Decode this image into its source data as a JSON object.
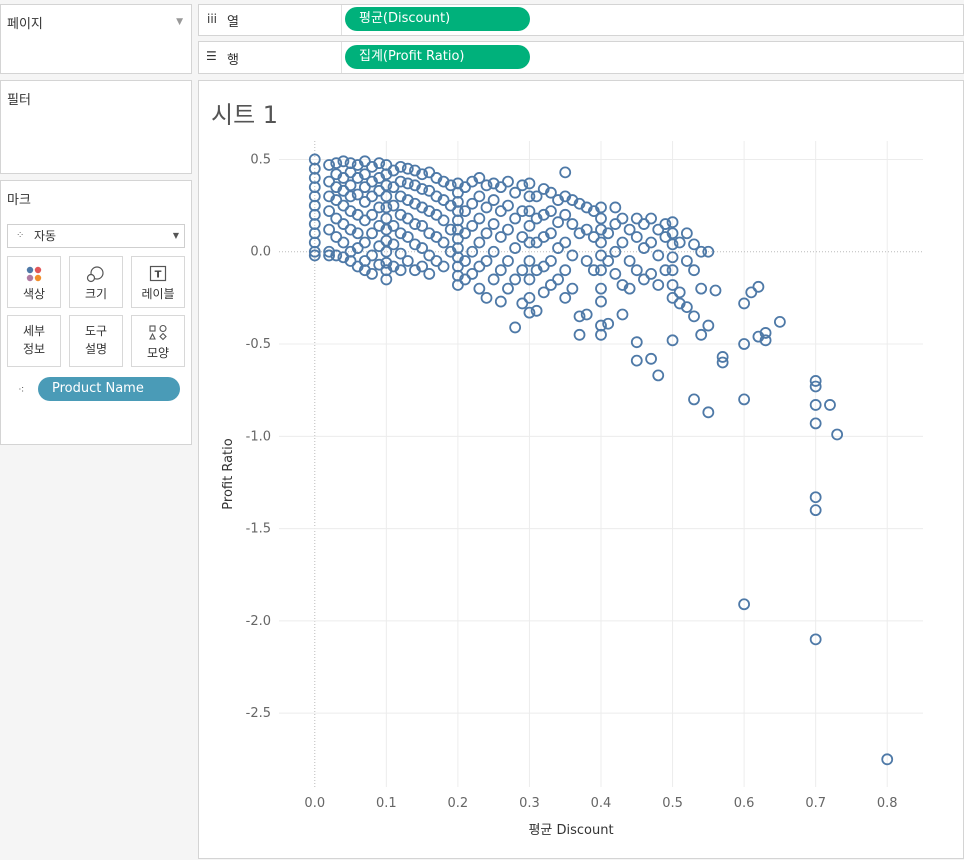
{
  "pages_panel": {
    "title": "페이지"
  },
  "filters_panel": {
    "title": "필터"
  },
  "marks_panel": {
    "title": "마크",
    "mark_type": "자동",
    "buttons": [
      {
        "label": "색상",
        "icon": "color-dots-icon"
      },
      {
        "label": "크기",
        "icon": "size-circles-icon"
      },
      {
        "label": "레이블",
        "icon": "label-t-icon"
      },
      {
        "label_line1": "세부",
        "label_line2": "정보",
        "icon": "none"
      },
      {
        "label_line1": "도구",
        "label_line2": "설명",
        "icon": "none"
      },
      {
        "label": "모양",
        "icon": "shape-icon"
      }
    ],
    "detail_pill": "Product Name"
  },
  "columns_shelf": {
    "label": "열",
    "icon": "columns-icon",
    "pill": "평균(Discount)"
  },
  "rows_shelf": {
    "label": "행",
    "icon": "rows-icon",
    "pill": "집계(Profit Ratio)"
  },
  "sheet": {
    "title": "시트 1"
  },
  "colors": {
    "pill_green": "#00b17b",
    "pill_blue": "#4a9bb7",
    "mark": "#4e79a7"
  },
  "chart_data": {
    "type": "scatter",
    "xlabel": "평균 Discount",
    "ylabel": "Profit Ratio",
    "xlim": [
      -0.05,
      0.85
    ],
    "ylim": [
      -2.9,
      0.6
    ],
    "x_ticks": [
      "0.0",
      "0.1",
      "0.2",
      "0.3",
      "0.4",
      "0.5",
      "0.6",
      "0.7",
      "0.8"
    ],
    "y_ticks": [
      "0.5",
      "0.0",
      "-0.5",
      "-1.0",
      "-1.5",
      "-2.0",
      "-2.5"
    ],
    "grid": true,
    "marker": "hollow-circle",
    "points": [
      [
        0.0,
        0.5
      ],
      [
        0.0,
        0.45
      ],
      [
        0.0,
        0.4
      ],
      [
        0.0,
        0.35
      ],
      [
        0.0,
        0.3
      ],
      [
        0.0,
        0.25
      ],
      [
        0.0,
        0.2
      ],
      [
        0.0,
        0.15
      ],
      [
        0.0,
        0.1
      ],
      [
        0.0,
        0.05
      ],
      [
        0.0,
        0.0
      ],
      [
        0.0,
        -0.02
      ],
      [
        0.02,
        0.47
      ],
      [
        0.02,
        0.38
      ],
      [
        0.02,
        0.3
      ],
      [
        0.02,
        0.22
      ],
      [
        0.02,
        0.12
      ],
      [
        0.02,
        0.0
      ],
      [
        0.02,
        -0.02
      ],
      [
        0.03,
        0.48
      ],
      [
        0.03,
        0.42
      ],
      [
        0.03,
        0.35
      ],
      [
        0.03,
        0.28
      ],
      [
        0.03,
        0.18
      ],
      [
        0.03,
        0.08
      ],
      [
        0.03,
        -0.02
      ],
      [
        0.04,
        0.49
      ],
      [
        0.04,
        0.4
      ],
      [
        0.04,
        0.33
      ],
      [
        0.04,
        0.25
      ],
      [
        0.04,
        0.15
      ],
      [
        0.04,
        0.05
      ],
      [
        0.04,
        -0.03
      ],
      [
        0.05,
        0.48
      ],
      [
        0.05,
        0.43
      ],
      [
        0.05,
        0.36
      ],
      [
        0.05,
        0.3
      ],
      [
        0.05,
        0.22
      ],
      [
        0.05,
        0.12
      ],
      [
        0.05,
        0.0
      ],
      [
        0.05,
        -0.05
      ],
      [
        0.06,
        0.47
      ],
      [
        0.06,
        0.4
      ],
      [
        0.06,
        0.31
      ],
      [
        0.06,
        0.2
      ],
      [
        0.06,
        0.1
      ],
      [
        0.06,
        0.02
      ],
      [
        0.06,
        -0.08
      ],
      [
        0.07,
        0.49
      ],
      [
        0.07,
        0.42
      ],
      [
        0.07,
        0.35
      ],
      [
        0.07,
        0.27
      ],
      [
        0.07,
        0.17
      ],
      [
        0.07,
        0.05
      ],
      [
        0.07,
        -0.05
      ],
      [
        0.07,
        -0.1
      ],
      [
        0.08,
        0.46
      ],
      [
        0.08,
        0.38
      ],
      [
        0.08,
        0.3
      ],
      [
        0.08,
        0.2
      ],
      [
        0.08,
        0.1
      ],
      [
        0.08,
        -0.02
      ],
      [
        0.08,
        -0.12
      ],
      [
        0.09,
        0.48
      ],
      [
        0.09,
        0.4
      ],
      [
        0.09,
        0.33
      ],
      [
        0.09,
        0.24
      ],
      [
        0.09,
        0.14
      ],
      [
        0.09,
        0.03
      ],
      [
        0.09,
        -0.07
      ],
      [
        0.1,
        0.47
      ],
      [
        0.1,
        0.42
      ],
      [
        0.1,
        0.36
      ],
      [
        0.1,
        0.3
      ],
      [
        0.1,
        0.24
      ],
      [
        0.1,
        0.18
      ],
      [
        0.1,
        0.12
      ],
      [
        0.1,
        0.06
      ],
      [
        0.1,
        0.0
      ],
      [
        0.1,
        -0.06
      ],
      [
        0.1,
        -0.1
      ],
      [
        0.1,
        -0.15
      ],
      [
        0.11,
        0.44
      ],
      [
        0.11,
        0.35
      ],
      [
        0.11,
        0.25
      ],
      [
        0.11,
        0.14
      ],
      [
        0.11,
        0.04
      ],
      [
        0.11,
        -0.08
      ],
      [
        0.12,
        0.46
      ],
      [
        0.12,
        0.38
      ],
      [
        0.12,
        0.3
      ],
      [
        0.12,
        0.2
      ],
      [
        0.12,
        0.1
      ],
      [
        0.12,
        -0.01
      ],
      [
        0.12,
        -0.1
      ],
      [
        0.13,
        0.45
      ],
      [
        0.13,
        0.37
      ],
      [
        0.13,
        0.28
      ],
      [
        0.13,
        0.18
      ],
      [
        0.13,
        0.08
      ],
      [
        0.13,
        -0.05
      ],
      [
        0.14,
        0.44
      ],
      [
        0.14,
        0.36
      ],
      [
        0.14,
        0.26
      ],
      [
        0.14,
        0.15
      ],
      [
        0.14,
        0.04
      ],
      [
        0.14,
        -0.1
      ],
      [
        0.15,
        0.42
      ],
      [
        0.15,
        0.34
      ],
      [
        0.15,
        0.24
      ],
      [
        0.15,
        0.14
      ],
      [
        0.15,
        0.02
      ],
      [
        0.15,
        -0.08
      ],
      [
        0.16,
        0.43
      ],
      [
        0.16,
        0.33
      ],
      [
        0.16,
        0.22
      ],
      [
        0.16,
        0.1
      ],
      [
        0.16,
        -0.02
      ],
      [
        0.16,
        -0.12
      ],
      [
        0.17,
        0.4
      ],
      [
        0.17,
        0.3
      ],
      [
        0.17,
        0.2
      ],
      [
        0.17,
        0.08
      ],
      [
        0.17,
        -0.05
      ],
      [
        0.18,
        0.38
      ],
      [
        0.18,
        0.28
      ],
      [
        0.18,
        0.17
      ],
      [
        0.18,
        0.05
      ],
      [
        0.18,
        -0.08
      ],
      [
        0.19,
        0.36
      ],
      [
        0.19,
        0.25
      ],
      [
        0.19,
        0.12
      ],
      [
        0.19,
        0.0
      ],
      [
        0.2,
        0.37
      ],
      [
        0.2,
        0.32
      ],
      [
        0.2,
        0.27
      ],
      [
        0.2,
        0.22
      ],
      [
        0.2,
        0.17
      ],
      [
        0.2,
        0.12
      ],
      [
        0.2,
        0.07
      ],
      [
        0.2,
        0.02
      ],
      [
        0.2,
        -0.03
      ],
      [
        0.2,
        -0.08
      ],
      [
        0.2,
        -0.13
      ],
      [
        0.2,
        -0.18
      ],
      [
        0.21,
        0.35
      ],
      [
        0.21,
        0.22
      ],
      [
        0.21,
        0.1
      ],
      [
        0.21,
        -0.05
      ],
      [
        0.21,
        -0.15
      ],
      [
        0.22,
        0.38
      ],
      [
        0.22,
        0.26
      ],
      [
        0.22,
        0.14
      ],
      [
        0.22,
        0.0
      ],
      [
        0.22,
        -0.12
      ],
      [
        0.23,
        0.4
      ],
      [
        0.23,
        0.3
      ],
      [
        0.23,
        0.18
      ],
      [
        0.23,
        0.05
      ],
      [
        0.23,
        -0.08
      ],
      [
        0.23,
        -0.2
      ],
      [
        0.24,
        0.36
      ],
      [
        0.24,
        0.24
      ],
      [
        0.24,
        0.1
      ],
      [
        0.24,
        -0.05
      ],
      [
        0.24,
        -0.25
      ],
      [
        0.25,
        0.37
      ],
      [
        0.25,
        0.28
      ],
      [
        0.25,
        0.15
      ],
      [
        0.25,
        0.0
      ],
      [
        0.25,
        -0.15
      ],
      [
        0.26,
        0.35
      ],
      [
        0.26,
        0.22
      ],
      [
        0.26,
        0.08
      ],
      [
        0.26,
        -0.1
      ],
      [
        0.26,
        -0.27
      ],
      [
        0.27,
        0.38
      ],
      [
        0.27,
        0.25
      ],
      [
        0.27,
        0.12
      ],
      [
        0.27,
        -0.05
      ],
      [
        0.27,
        -0.2
      ],
      [
        0.28,
        0.32
      ],
      [
        0.28,
        0.18
      ],
      [
        0.28,
        0.02
      ],
      [
        0.28,
        -0.15
      ],
      [
        0.28,
        -0.41
      ],
      [
        0.29,
        0.36
      ],
      [
        0.29,
        0.22
      ],
      [
        0.29,
        0.08
      ],
      [
        0.29,
        -0.1
      ],
      [
        0.29,
        -0.28
      ],
      [
        0.3,
        0.37
      ],
      [
        0.3,
        0.3
      ],
      [
        0.3,
        0.22
      ],
      [
        0.3,
        0.14
      ],
      [
        0.3,
        0.05
      ],
      [
        0.3,
        -0.05
      ],
      [
        0.3,
        -0.15
      ],
      [
        0.3,
        -0.25
      ],
      [
        0.3,
        -0.33
      ],
      [
        0.31,
        0.3
      ],
      [
        0.31,
        0.18
      ],
      [
        0.31,
        0.05
      ],
      [
        0.31,
        -0.1
      ],
      [
        0.31,
        -0.32
      ],
      [
        0.32,
        0.34
      ],
      [
        0.32,
        0.2
      ],
      [
        0.32,
        0.08
      ],
      [
        0.32,
        -0.08
      ],
      [
        0.32,
        -0.22
      ],
      [
        0.33,
        0.32
      ],
      [
        0.33,
        0.22
      ],
      [
        0.33,
        0.1
      ],
      [
        0.33,
        -0.05
      ],
      [
        0.33,
        -0.18
      ],
      [
        0.34,
        0.28
      ],
      [
        0.34,
        0.16
      ],
      [
        0.34,
        0.02
      ],
      [
        0.34,
        -0.15
      ],
      [
        0.35,
        0.43
      ],
      [
        0.35,
        0.3
      ],
      [
        0.35,
        0.2
      ],
      [
        0.35,
        0.05
      ],
      [
        0.35,
        -0.1
      ],
      [
        0.35,
        -0.25
      ],
      [
        0.36,
        0.28
      ],
      [
        0.36,
        0.15
      ],
      [
        0.36,
        -0.02
      ],
      [
        0.36,
        -0.2
      ],
      [
        0.37,
        0.26
      ],
      [
        0.37,
        0.1
      ],
      [
        0.37,
        -0.35
      ],
      [
        0.37,
        -0.45
      ],
      [
        0.38,
        0.24
      ],
      [
        0.38,
        0.12
      ],
      [
        0.38,
        -0.05
      ],
      [
        0.38,
        -0.34
      ],
      [
        0.39,
        0.22
      ],
      [
        0.39,
        0.08
      ],
      [
        0.39,
        -0.1
      ],
      [
        0.4,
        0.24
      ],
      [
        0.4,
        0.18
      ],
      [
        0.4,
        0.12
      ],
      [
        0.4,
        0.05
      ],
      [
        0.4,
        -0.02
      ],
      [
        0.4,
        -0.1
      ],
      [
        0.4,
        -0.2
      ],
      [
        0.4,
        -0.27
      ],
      [
        0.4,
        -0.4
      ],
      [
        0.4,
        -0.45
      ],
      [
        0.41,
        0.1
      ],
      [
        0.41,
        -0.05
      ],
      [
        0.41,
        -0.39
      ],
      [
        0.42,
        0.24
      ],
      [
        0.42,
        0.15
      ],
      [
        0.42,
        0.0
      ],
      [
        0.42,
        -0.12
      ],
      [
        0.43,
        0.18
      ],
      [
        0.43,
        0.05
      ],
      [
        0.43,
        -0.18
      ],
      [
        0.43,
        -0.34
      ],
      [
        0.44,
        0.12
      ],
      [
        0.44,
        -0.05
      ],
      [
        0.44,
        -0.2
      ],
      [
        0.45,
        0.18
      ],
      [
        0.45,
        0.08
      ],
      [
        0.45,
        -0.1
      ],
      [
        0.45,
        -0.49
      ],
      [
        0.45,
        -0.59
      ],
      [
        0.46,
        0.15
      ],
      [
        0.46,
        0.02
      ],
      [
        0.46,
        -0.15
      ],
      [
        0.47,
        0.18
      ],
      [
        0.47,
        0.05
      ],
      [
        0.47,
        -0.12
      ],
      [
        0.47,
        -0.58
      ],
      [
        0.48,
        0.12
      ],
      [
        0.48,
        -0.02
      ],
      [
        0.48,
        -0.18
      ],
      [
        0.48,
        -0.67
      ],
      [
        0.49,
        0.15
      ],
      [
        0.49,
        0.08
      ],
      [
        0.49,
        -0.1
      ],
      [
        0.5,
        0.16
      ],
      [
        0.5,
        0.1
      ],
      [
        0.5,
        0.04
      ],
      [
        0.5,
        -0.03
      ],
      [
        0.5,
        -0.1
      ],
      [
        0.5,
        -0.18
      ],
      [
        0.5,
        -0.25
      ],
      [
        0.5,
        -0.48
      ],
      [
        0.51,
        0.05
      ],
      [
        0.51,
        -0.22
      ],
      [
        0.51,
        -0.28
      ],
      [
        0.52,
        0.1
      ],
      [
        0.52,
        -0.05
      ],
      [
        0.52,
        -0.3
      ],
      [
        0.53,
        0.04
      ],
      [
        0.53,
        -0.1
      ],
      [
        0.53,
        -0.35
      ],
      [
        0.53,
        -0.8
      ],
      [
        0.54,
        0.0
      ],
      [
        0.54,
        -0.2
      ],
      [
        0.54,
        -0.45
      ],
      [
        0.55,
        0.0
      ],
      [
        0.55,
        -0.4
      ],
      [
        0.55,
        -0.87
      ],
      [
        0.56,
        -0.21
      ],
      [
        0.57,
        -0.57
      ],
      [
        0.57,
        -0.6
      ],
      [
        0.6,
        -0.28
      ],
      [
        0.6,
        -0.5
      ],
      [
        0.6,
        -0.8
      ],
      [
        0.6,
        -1.91
      ],
      [
        0.61,
        -0.22
      ],
      [
        0.62,
        -0.19
      ],
      [
        0.62,
        -0.46
      ],
      [
        0.63,
        -0.48
      ],
      [
        0.63,
        -0.44
      ],
      [
        0.65,
        -0.38
      ],
      [
        0.7,
        -0.7
      ],
      [
        0.7,
        -0.73
      ],
      [
        0.7,
        -0.83
      ],
      [
        0.7,
        -0.93
      ],
      [
        0.7,
        -1.33
      ],
      [
        0.7,
        -1.4
      ],
      [
        0.7,
        -2.1
      ],
      [
        0.72,
        -0.83
      ],
      [
        0.73,
        -0.99
      ],
      [
        0.8,
        -2.75
      ]
    ]
  }
}
